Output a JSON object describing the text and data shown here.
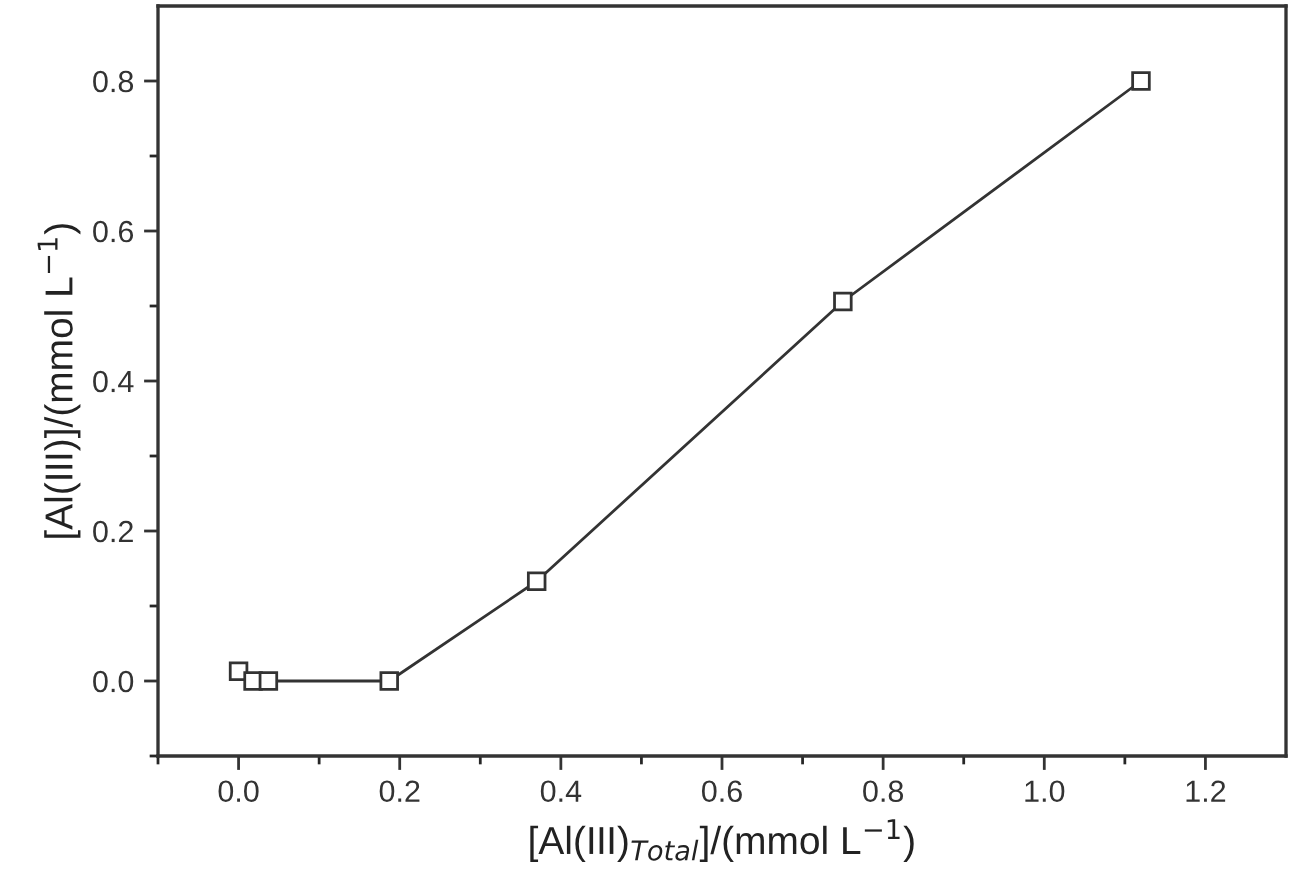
{
  "chart_data": {
    "type": "line",
    "xlabel": "[Al(III)$_{Total}$]/(mmol L$^{−1}$)",
    "ylabel": "[Al(III)]/(mmol L$^{−1}$)",
    "x": [
      0,
      0.018,
      0.037,
      0.187,
      0.37,
      0.75,
      1.12
    ],
    "series": [
      {
        "color": "#333333",
        "values": [
          0.013,
          0,
          0,
          0,
          0.133,
          0.506,
          0.8
        ]
      }
    ],
    "marker": "square",
    "line_style": "solid",
    "grid": false,
    "legend": false,
    "xlim": [
      -0.1,
      1.3
    ],
    "ylim": [
      -0.1,
      0.9
    ],
    "xticks": [
      {
        "value": -0.1,
        "label": null
      },
      {
        "value": 0,
        "label": "0.0"
      },
      {
        "value": 0.1,
        "label": null
      },
      {
        "value": 0.2,
        "label": "0.2"
      },
      {
        "value": 0.3,
        "label": null
      },
      {
        "value": 0.4,
        "label": "0.4"
      },
      {
        "value": 0.5,
        "label": null
      },
      {
        "value": 0.6,
        "label": "0.6"
      },
      {
        "value": 0.7,
        "label": null
      },
      {
        "value": 0.8,
        "label": "0.8"
      },
      {
        "value": 0.9,
        "label": null
      },
      {
        "value": 1.0,
        "label": "1.0"
      },
      {
        "value": 1.1,
        "label": null
      },
      {
        "value": 1.2,
        "label": "1.2"
      }
    ],
    "yticks": [
      {
        "value": -0.1,
        "label": null
      },
      {
        "value": 0,
        "label": "0.0"
      },
      {
        "value": 0.1,
        "label": null
      },
      {
        "value": 0.2,
        "label": "0.2"
      },
      {
        "value": 0.3,
        "label": null
      },
      {
        "value": 0.4,
        "label": "0.4"
      },
      {
        "value": 0.5,
        "label": null
      },
      {
        "value": 0.6,
        "label": "0.6"
      },
      {
        "value": 0.7,
        "label": null
      },
      {
        "value": 0.8,
        "label": "0.8"
      }
    ]
  }
}
